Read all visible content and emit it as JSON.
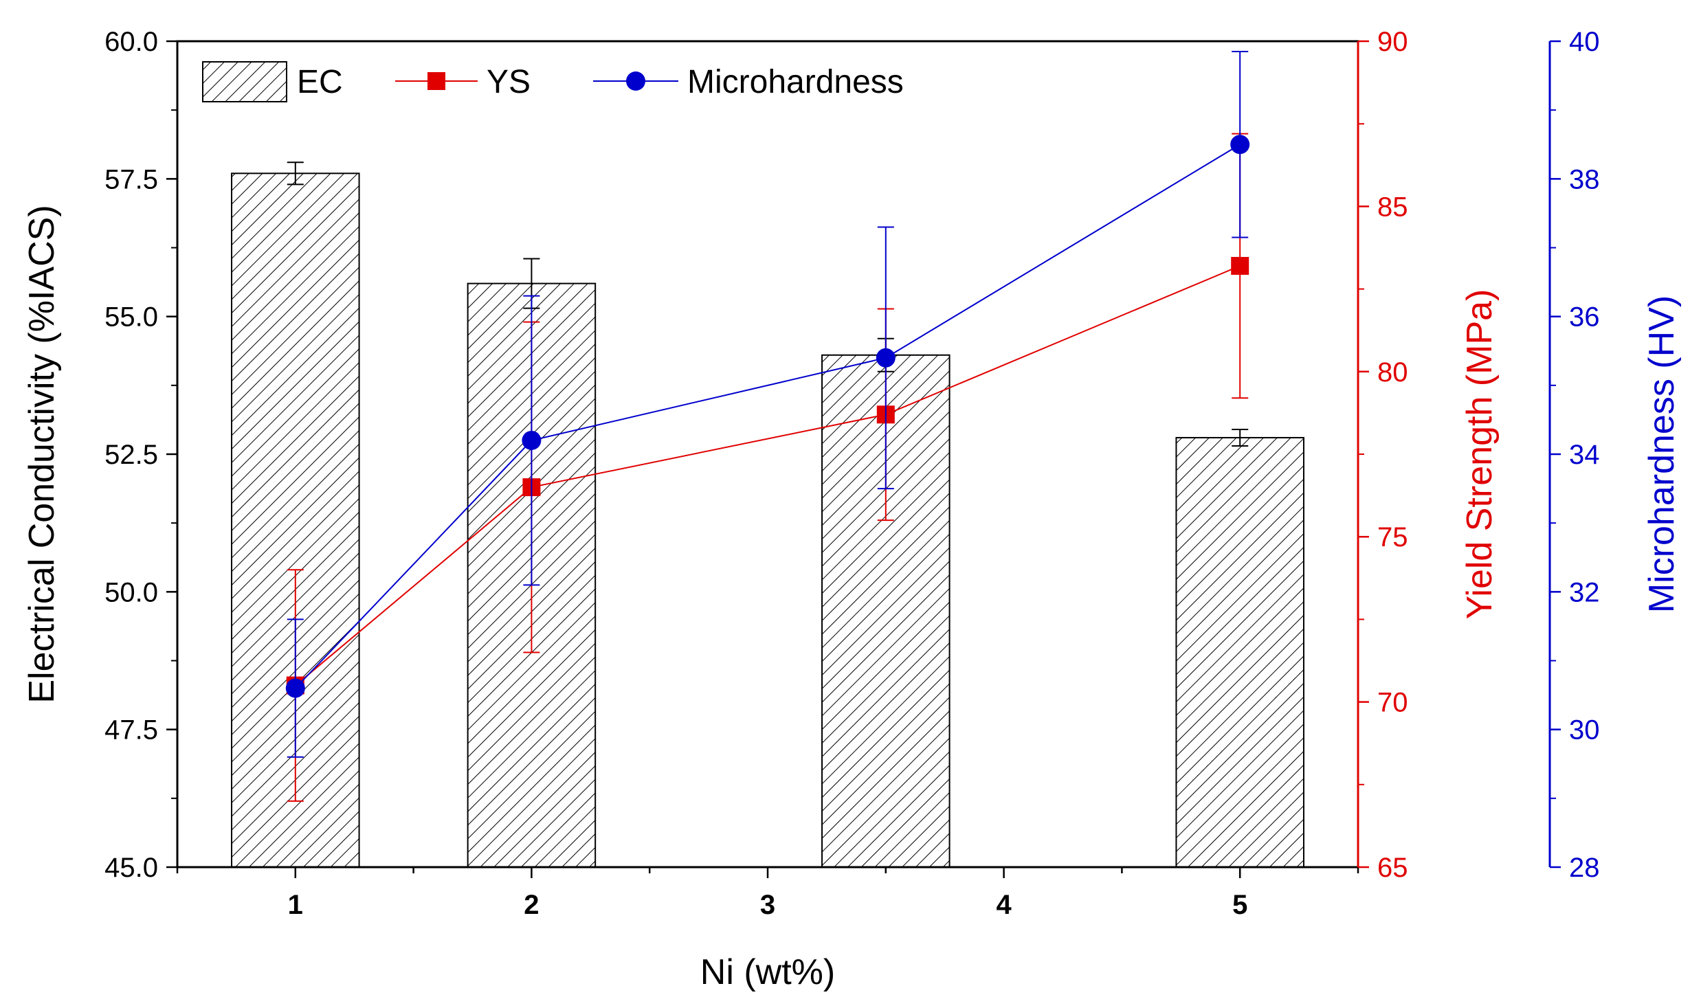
{
  "chart_data": {
    "type": "bar",
    "x_axis": {
      "label": "Ni (wt%)",
      "range": [
        0.5,
        5.5
      ],
      "ticks": [
        1,
        2,
        3,
        4,
        5
      ]
    },
    "y_axes": {
      "left": {
        "label": "Electrical Conductivity (%IACS)",
        "range": [
          45.0,
          60.0
        ],
        "ticks": [
          "45.0",
          "47.5",
          "50.0",
          "52.5",
          "55.0",
          "57.5",
          "60.0"
        ],
        "color": "#000000"
      },
      "right1": {
        "label": "Yield Strength (MPa)",
        "range": [
          65,
          90
        ],
        "ticks": [
          "65",
          "70",
          "75",
          "80",
          "85",
          "90"
        ],
        "color": "#e00000"
      },
      "right2": {
        "label": "Microhardness (HV)",
        "range": [
          28,
          40
        ],
        "ticks": [
          "28",
          "30",
          "32",
          "34",
          "36",
          "38",
          "40"
        ],
        "color": "#0000cc"
      }
    },
    "series": [
      {
        "name": "EC",
        "kind": "bar",
        "axis": "left",
        "x": [
          1,
          2,
          3.5,
          5
        ],
        "values": [
          57.6,
          55.6,
          54.3,
          52.8
        ],
        "errors": [
          0.2,
          0.45,
          0.3,
          0.15
        ],
        "bar_width": 0.54,
        "color": "#000000"
      },
      {
        "name": "YS",
        "kind": "line",
        "axis": "right1",
        "x": [
          1,
          2,
          3.5,
          5
        ],
        "values": [
          70.5,
          76.5,
          78.7,
          83.2
        ],
        "errors": [
          3.5,
          5.0,
          3.2,
          4.0
        ],
        "color": "#e00000",
        "marker": "square"
      },
      {
        "name": "Microhardness",
        "kind": "line",
        "axis": "right2",
        "x": [
          1,
          2,
          3.5,
          5
        ],
        "values": [
          30.6,
          34.2,
          35.4,
          38.5
        ],
        "errors": [
          1.0,
          2.1,
          1.9,
          1.35
        ],
        "color": "#0000cc",
        "marker": "circle"
      }
    ],
    "legend": {
      "position": "top-left",
      "entries": [
        "EC",
        "YS",
        "Microhardness"
      ]
    }
  }
}
